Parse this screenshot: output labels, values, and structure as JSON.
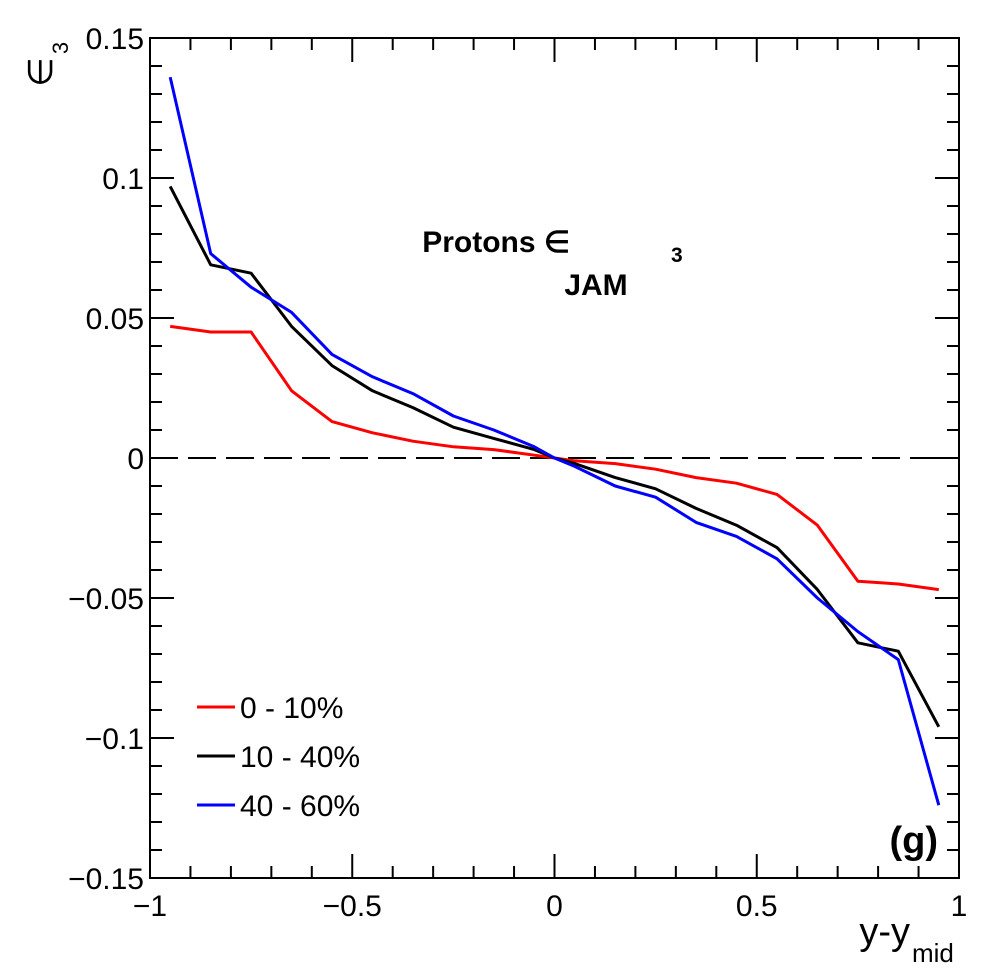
{
  "chart_data": {
    "type": "line",
    "title": "Protons ∈",
    "title_sub": "3",
    "subtitle": "JAM",
    "panel_label": "(g)",
    "xlabel": "y-y",
    "xlabel_sub": "mid",
    "ylabel": "∈",
    "ylabel_sub": "3",
    "xlim": [
      -1,
      1
    ],
    "ylim": [
      -0.15,
      0.15
    ],
    "x_ticks": [
      -1,
      -0.5,
      0,
      0.5,
      1
    ],
    "x_tick_labels": [
      "−1",
      "−0.5",
      "0",
      "0.5",
      "1"
    ],
    "y_ticks": [
      -0.15,
      -0.1,
      -0.05,
      0,
      0.05,
      0.1,
      0.15
    ],
    "y_tick_labels": [
      "−0.15",
      "−0.1",
      "−0.05",
      "0",
      "0.05",
      "0.1",
      "0.15"
    ],
    "reference_line": {
      "y": 0,
      "style": "dashed",
      "color": "#000000"
    },
    "legend_position": "bottom-left",
    "series": [
      {
        "name": "0 - 10%",
        "color": "#ff0000",
        "x": [
          -0.95,
          -0.85,
          -0.75,
          -0.65,
          -0.55,
          -0.45,
          -0.35,
          -0.25,
          -0.15,
          -0.05,
          0.0,
          0.05,
          0.15,
          0.25,
          0.35,
          0.45,
          0.55,
          0.65,
          0.75,
          0.85,
          0.95
        ],
        "y": [
          0.047,
          0.045,
          0.045,
          0.024,
          0.013,
          0.009,
          0.006,
          0.004,
          0.003,
          0.001,
          0.0,
          -0.001,
          -0.002,
          -0.004,
          -0.007,
          -0.009,
          -0.013,
          -0.024,
          -0.044,
          -0.045,
          -0.047
        ]
      },
      {
        "name": "10 - 40%",
        "color": "#000000",
        "x": [
          -0.95,
          -0.85,
          -0.75,
          -0.65,
          -0.55,
          -0.45,
          -0.35,
          -0.25,
          -0.15,
          -0.05,
          0.0,
          0.05,
          0.15,
          0.25,
          0.35,
          0.45,
          0.55,
          0.65,
          0.75,
          0.85,
          0.95
        ],
        "y": [
          0.097,
          0.069,
          0.066,
          0.047,
          0.033,
          0.024,
          0.018,
          0.011,
          0.007,
          0.003,
          0.0,
          -0.002,
          -0.007,
          -0.011,
          -0.018,
          -0.024,
          -0.032,
          -0.047,
          -0.066,
          -0.069,
          -0.096
        ]
      },
      {
        "name": "40 - 60%",
        "color": "#0000ff",
        "x": [
          -0.95,
          -0.85,
          -0.75,
          -0.65,
          -0.55,
          -0.45,
          -0.35,
          -0.25,
          -0.15,
          -0.05,
          0.0,
          0.05,
          0.15,
          0.25,
          0.35,
          0.45,
          0.55,
          0.65,
          0.75,
          0.85,
          0.95
        ],
        "y": [
          0.136,
          0.073,
          0.061,
          0.052,
          0.037,
          0.029,
          0.023,
          0.015,
          0.01,
          0.004,
          0.0,
          -0.003,
          -0.01,
          -0.014,
          -0.023,
          -0.028,
          -0.036,
          -0.05,
          -0.062,
          -0.072,
          -0.124
        ]
      }
    ]
  }
}
